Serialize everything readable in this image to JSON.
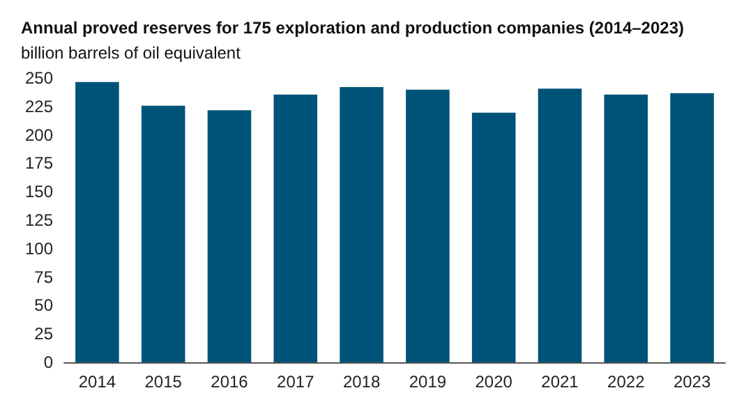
{
  "chart_data": {
    "type": "bar",
    "title": "Annual proved reserves for 175 exploration and production companies (2014–2023)",
    "ylabel": "billion barrels of oil equivalent",
    "categories": [
      "2014",
      "2015",
      "2016",
      "2017",
      "2018",
      "2019",
      "2020",
      "2021",
      "2022",
      "2023"
    ],
    "values": [
      246.5,
      225.7,
      221.7,
      235.4,
      242,
      239.8,
      219.5,
      240.7,
      235.4,
      236.7
    ],
    "color": "#005378",
    "ylim": [
      0,
      250
    ],
    "yticks": [
      0,
      25,
      50,
      75,
      100,
      125,
      150,
      175,
      200,
      225,
      250
    ],
    "grid": false
  }
}
